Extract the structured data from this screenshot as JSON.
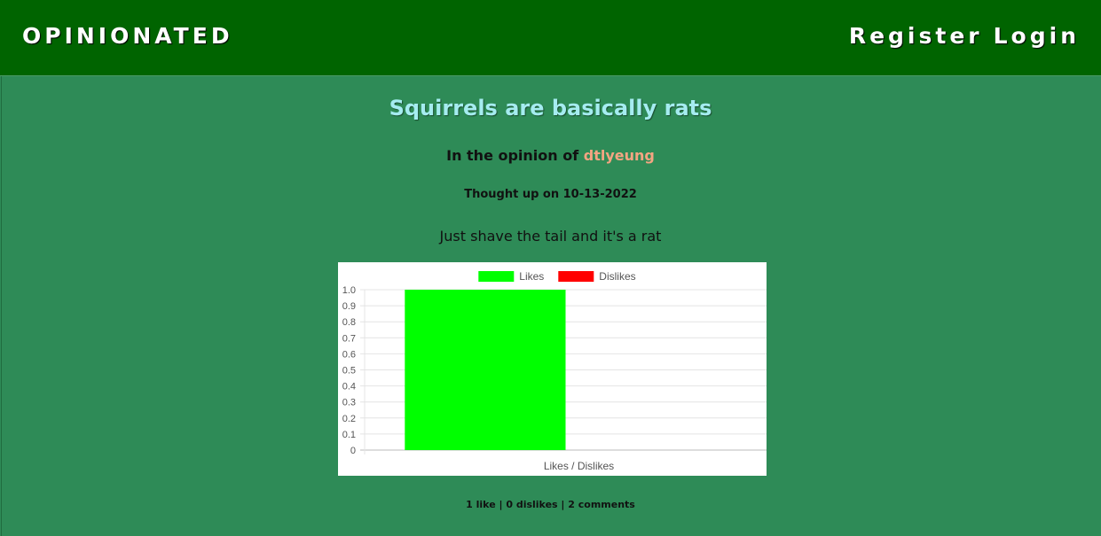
{
  "header": {
    "brand": "OPINIONATED",
    "register_label": "Register",
    "login_label": "Login"
  },
  "opinion": {
    "title": "Squirrels are basically rats",
    "byline_prefix": "In the opinion of",
    "author": "dtlyeung",
    "date": "Thought up on 10-13-2022",
    "body": "Just shave the tail and it's a rat",
    "stats": "1 like | 0 dislikes | 2 comments"
  },
  "colors": {
    "header_bg": "#006400",
    "page_bg": "#2e8b57",
    "title": "#a5ecf0",
    "author": "#f4a582",
    "likes": "#00ff00",
    "dislikes": "#ff0000"
  },
  "chart_data": {
    "type": "bar",
    "categories": [
      "Likes / Dislikes"
    ],
    "series": [
      {
        "name": "Likes",
        "values": [
          1
        ],
        "color": "#00ff00"
      },
      {
        "name": "Dislikes",
        "values": [
          0
        ],
        "color": "#ff0000"
      }
    ],
    "xlabel": "Likes / Dislikes",
    "ylabel": "",
    "ylim": [
      0,
      1
    ],
    "yticks": [
      "1.0",
      "0.9",
      "0.8",
      "0.7",
      "0.6",
      "0.5",
      "0.4",
      "0.3",
      "0.2",
      "0.1",
      "0"
    ],
    "legend": "top",
    "grid": true
  }
}
